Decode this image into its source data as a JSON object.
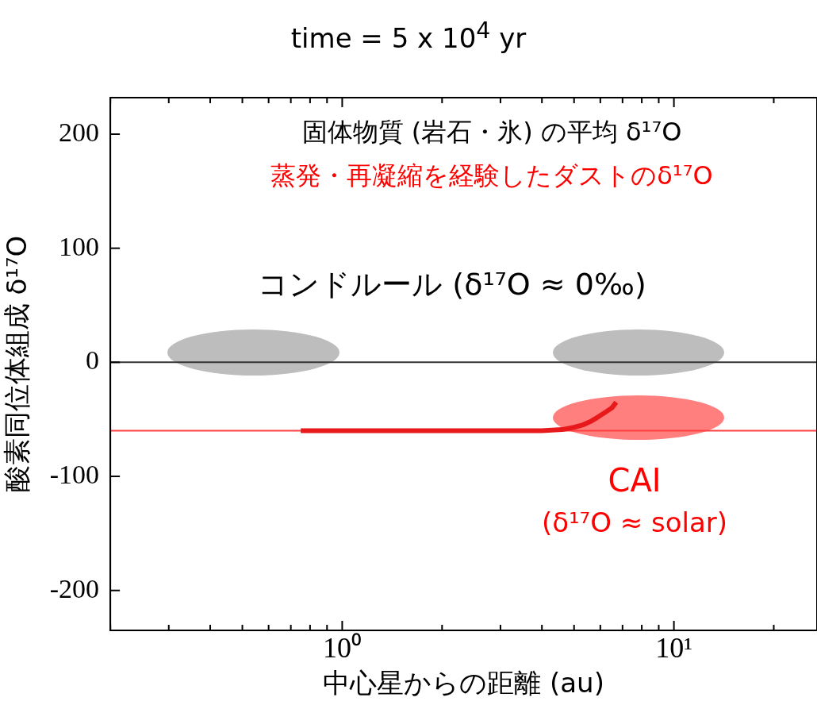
{
  "chart_data": {
    "type": "line",
    "title": "time  =  5 x 10$^{4}$  yr",
    "xlabel": "中心星からの距離 (au)",
    "ylabel": "酸素同位体組成 δ¹⁷O",
    "annotations": [
      "固体物質 (岩石・氷) の平均 δ¹⁷O",
      "蒸発・再凝縮を経験したダストのδ¹⁷O",
      "コンドルール (δ¹⁷O ≈ 0‰)",
      "CAI",
      "(δ¹⁷O ≈ solar)"
    ],
    "log": "x",
    "xlim": [
      0.2,
      27
    ],
    "ylim": [
      -235,
      232
    ],
    "xticks": [
      {
        "value": 0.2,
        "label": null
      },
      {
        "value": 0.3,
        "label": null
      },
      {
        "value": 0.4,
        "label": null
      },
      {
        "value": 0.5,
        "label": null
      },
      {
        "value": 0.6,
        "label": null
      },
      {
        "value": 0.7,
        "label": null
      },
      {
        "value": 0.8,
        "label": null
      },
      {
        "value": 0.9,
        "label": null
      },
      {
        "value": 1,
        "label": "10⁰"
      },
      {
        "value": 2,
        "label": null
      },
      {
        "value": 3,
        "label": null
      },
      {
        "value": 4,
        "label": null
      },
      {
        "value": 5,
        "label": null
      },
      {
        "value": 6,
        "label": null
      },
      {
        "value": 7,
        "label": null
      },
      {
        "value": 8,
        "label": null
      },
      {
        "value": 9,
        "label": null
      },
      {
        "value": 10,
        "label": "10¹"
      },
      {
        "value": 20,
        "label": null
      }
    ],
    "yticks": [
      -200,
      -100,
      0,
      100,
      200
    ],
    "grid": false,
    "legend": false,
    "marker": "none",
    "line_style": "solid",
    "ref_lines": [
      {
        "axis": "y",
        "value": 0,
        "color": "#333333"
      },
      {
        "axis": "y",
        "value": -60,
        "color": "#ff4040"
      }
    ],
    "series": [
      {
        "color": "#e8191a",
        "x": [
          0.75,
          4.0,
          4.6,
          5.0,
          5.3,
          5.6,
          5.9,
          6.2,
          6.5,
          6.7
        ],
        "values": [
          -60,
          -60,
          -59,
          -57,
          -55,
          -52,
          -48,
          -44,
          -40,
          -35
        ]
      }
    ]
  }
}
